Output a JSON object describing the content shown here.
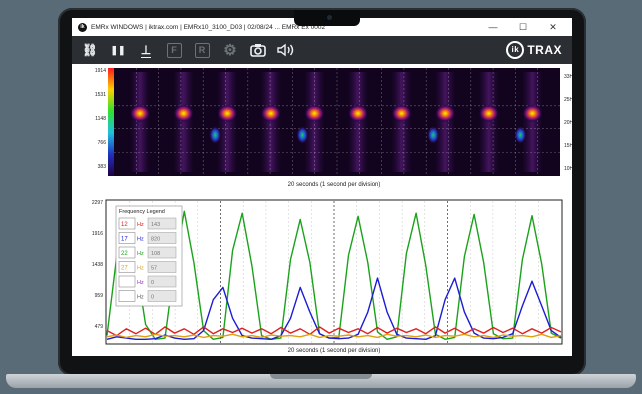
{
  "window": {
    "title": "EMRx WINDOWS | iktrax.com | EMRx10_3100_D03 | 02/08/24 ... EMRx Ex 0002",
    "minimize": "—",
    "maximize": "☐",
    "close": "✕"
  },
  "toolbar": {
    "buttons": [
      {
        "name": "link-icon",
        "glyph": "⛓"
      },
      {
        "name": "pause-icon",
        "glyph": "❚❚"
      },
      {
        "name": "baseline-icon",
        "glyph": "⊥"
      },
      {
        "name": "f-icon",
        "glyph": "F"
      },
      {
        "name": "r-icon",
        "glyph": "R"
      },
      {
        "name": "gear-icon",
        "glyph": "⚙"
      },
      {
        "name": "camera-icon",
        "glyph": "📷"
      },
      {
        "name": "speaker-icon",
        "glyph": "🔊"
      }
    ],
    "brand_mark": "ik",
    "brand_name": "TRAX"
  },
  "spectrogram": {
    "y_ticks_left": [
      "1914",
      "1531",
      "1148",
      "766",
      "383"
    ],
    "y_ticks_right": [
      "33Hz",
      "25Hz",
      "20Hz",
      "15Hz",
      "10Hz"
    ],
    "x_label": "20 seconds (1 second per division)"
  },
  "chart_data": {
    "type": "line",
    "x_label": "20 seconds (1 second per division)",
    "y_ticks": [
      "2297",
      "1916",
      "1438",
      "959",
      "479"
    ],
    "ylim": [
      0,
      2297
    ],
    "series": [
      {
        "name": "22 Hz",
        "color": "#1aa31a",
        "values": [
          120,
          1400,
          2130,
          1300,
          300,
          60,
          80,
          1250,
          2130,
          1300,
          200,
          60,
          90,
          1500,
          2100,
          1250,
          120,
          60,
          80,
          1350,
          2000,
          1300,
          150,
          80,
          90,
          1420,
          2050,
          1300,
          180,
          60,
          100,
          1450,
          2100,
          1250,
          140,
          60,
          90,
          1400,
          2080,
          1300,
          150,
          70,
          80,
          1350,
          2060,
          1280,
          160,
          80
        ]
      },
      {
        "name": "17 Hz",
        "color": "#1c1cd4",
        "values": [
          60,
          100,
          80,
          60,
          60,
          70,
          130,
          80,
          60,
          70,
          200,
          700,
          900,
          400,
          120,
          80,
          70,
          60,
          120,
          400,
          900,
          500,
          150,
          80,
          70,
          80,
          140,
          500,
          1050,
          500,
          140,
          80,
          70,
          60,
          120,
          700,
          1050,
          500,
          160,
          80,
          70,
          90,
          150,
          600,
          1000,
          600,
          200,
          90
        ]
      },
      {
        "name": "12 Hz",
        "color": "#e02020",
        "values": [
          200,
          120,
          230,
          150,
          240,
          140,
          260,
          160,
          230,
          140,
          260,
          150,
          230,
          170,
          240,
          160,
          230,
          150,
          250,
          160,
          230,
          140,
          260,
          160,
          240,
          170,
          230,
          150,
          250,
          160,
          240,
          170,
          230,
          150,
          260,
          160,
          240,
          150,
          230,
          160,
          250,
          170,
          240,
          150,
          230,
          160,
          250,
          180
        ]
      },
      {
        "name": "27 Hz",
        "color": "#e0a010",
        "values": [
          100,
          130,
          90,
          120,
          100,
          140,
          110,
          120,
          100,
          130,
          90,
          120,
          110,
          140,
          100,
          120,
          90,
          130,
          110,
          120,
          100,
          140,
          90,
          120,
          110,
          130,
          100,
          120,
          90,
          140,
          110,
          120,
          100,
          130,
          90,
          120,
          110,
          140,
          100,
          120,
          90,
          130,
          110,
          120,
          100,
          140,
          90,
          120
        ]
      }
    ],
    "legend": {
      "title": "Frequency Legend",
      "entries": [
        {
          "freq": "12",
          "unit": "Hz",
          "value": "143",
          "color": "#e02020"
        },
        {
          "freq": "17",
          "unit": "Hz",
          "value": "820",
          "color": "#1c1cd4"
        },
        {
          "freq": "22",
          "unit": "Hz",
          "value": "108",
          "color": "#1aa31a"
        },
        {
          "freq": "27",
          "unit": "Hz",
          "value": "57",
          "color": "#e0a010"
        },
        {
          "freq": "",
          "unit": "Hz",
          "value": "0",
          "color": "#9b2fc8"
        },
        {
          "freq": "",
          "unit": "Hz",
          "value": "0",
          "color": "#555555"
        }
      ]
    }
  },
  "colors": {
    "toolbar_bg": "#2b2f33",
    "spectro_bg": "#12041e",
    "hot": "#f6f600",
    "warm": "#20d040",
    "accent": "#e02020"
  }
}
